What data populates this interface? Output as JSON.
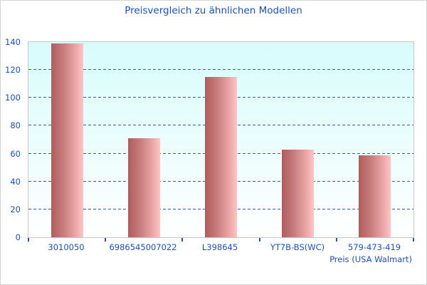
{
  "chart_data": {
    "type": "bar",
    "title": "Preisvergleich zu ähnlichen Modellen",
    "xlabel": "Preis (USA Walmart)",
    "ylabel": "",
    "categories": [
      "3010050",
      "6986545007022",
      "L398645",
      "YT7B-BS(WC)",
      "579-473-419"
    ],
    "values": [
      139,
      71,
      115,
      63,
      59
    ],
    "ylim": [
      0,
      140
    ],
    "yticks": [
      0,
      20,
      40,
      60,
      80,
      100,
      120,
      140
    ],
    "grid": "horizontal-dashed",
    "legend": "none"
  },
  "colors": {
    "text_blue": "#1b50c8",
    "grid_blue": "#2f5fc6",
    "bar_dark": "#b05c5c",
    "bar_light": "#fcc6c6",
    "plot_bg_top": "#d7fcfc",
    "plot_bg_bottom": "#ffffff",
    "border_gray": "#c9c9c9"
  }
}
